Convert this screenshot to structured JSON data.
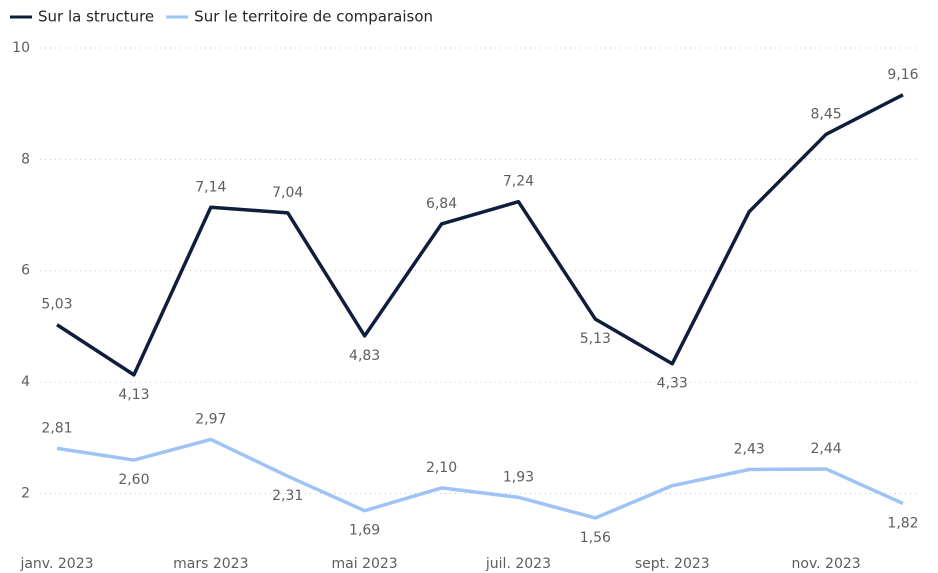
{
  "chart_data": {
    "type": "line",
    "categories": [
      "janv. 2023",
      null,
      "mars 2023",
      null,
      "mai 2023",
      null,
      "juil. 2023",
      null,
      "sept. 2023",
      null,
      "nov. 2023",
      null
    ],
    "series": [
      {
        "name": "Sur la structure",
        "color": "#0f1e3c",
        "values": [
          5.03,
          4.13,
          7.14,
          7.04,
          4.83,
          6.84,
          7.24,
          5.13,
          4.33,
          7.06,
          8.45,
          9.16
        ],
        "value_labels": [
          "5,03",
          "4,13",
          "7,14",
          "7,04",
          "4,83",
          "6,84",
          "7,24",
          "5,13",
          "4,33",
          null,
          "8,45",
          "9,16"
        ]
      },
      {
        "name": "Sur le territoire de comparaison",
        "color": "#9ec3f5",
        "values": [
          2.81,
          2.6,
          2.97,
          2.31,
          1.69,
          2.1,
          1.93,
          1.56,
          2.14,
          2.43,
          2.44,
          1.82
        ],
        "value_labels": [
          "2,81",
          "2,60",
          "2,97",
          "2,31",
          "1,69",
          "2,10",
          "1,93",
          "1,56",
          null,
          "2,43",
          "2,44",
          "1,82"
        ]
      }
    ],
    "ylim": [
      1.2,
      10
    ],
    "yticks": [
      2,
      4,
      6,
      8,
      10
    ],
    "grid": true
  }
}
